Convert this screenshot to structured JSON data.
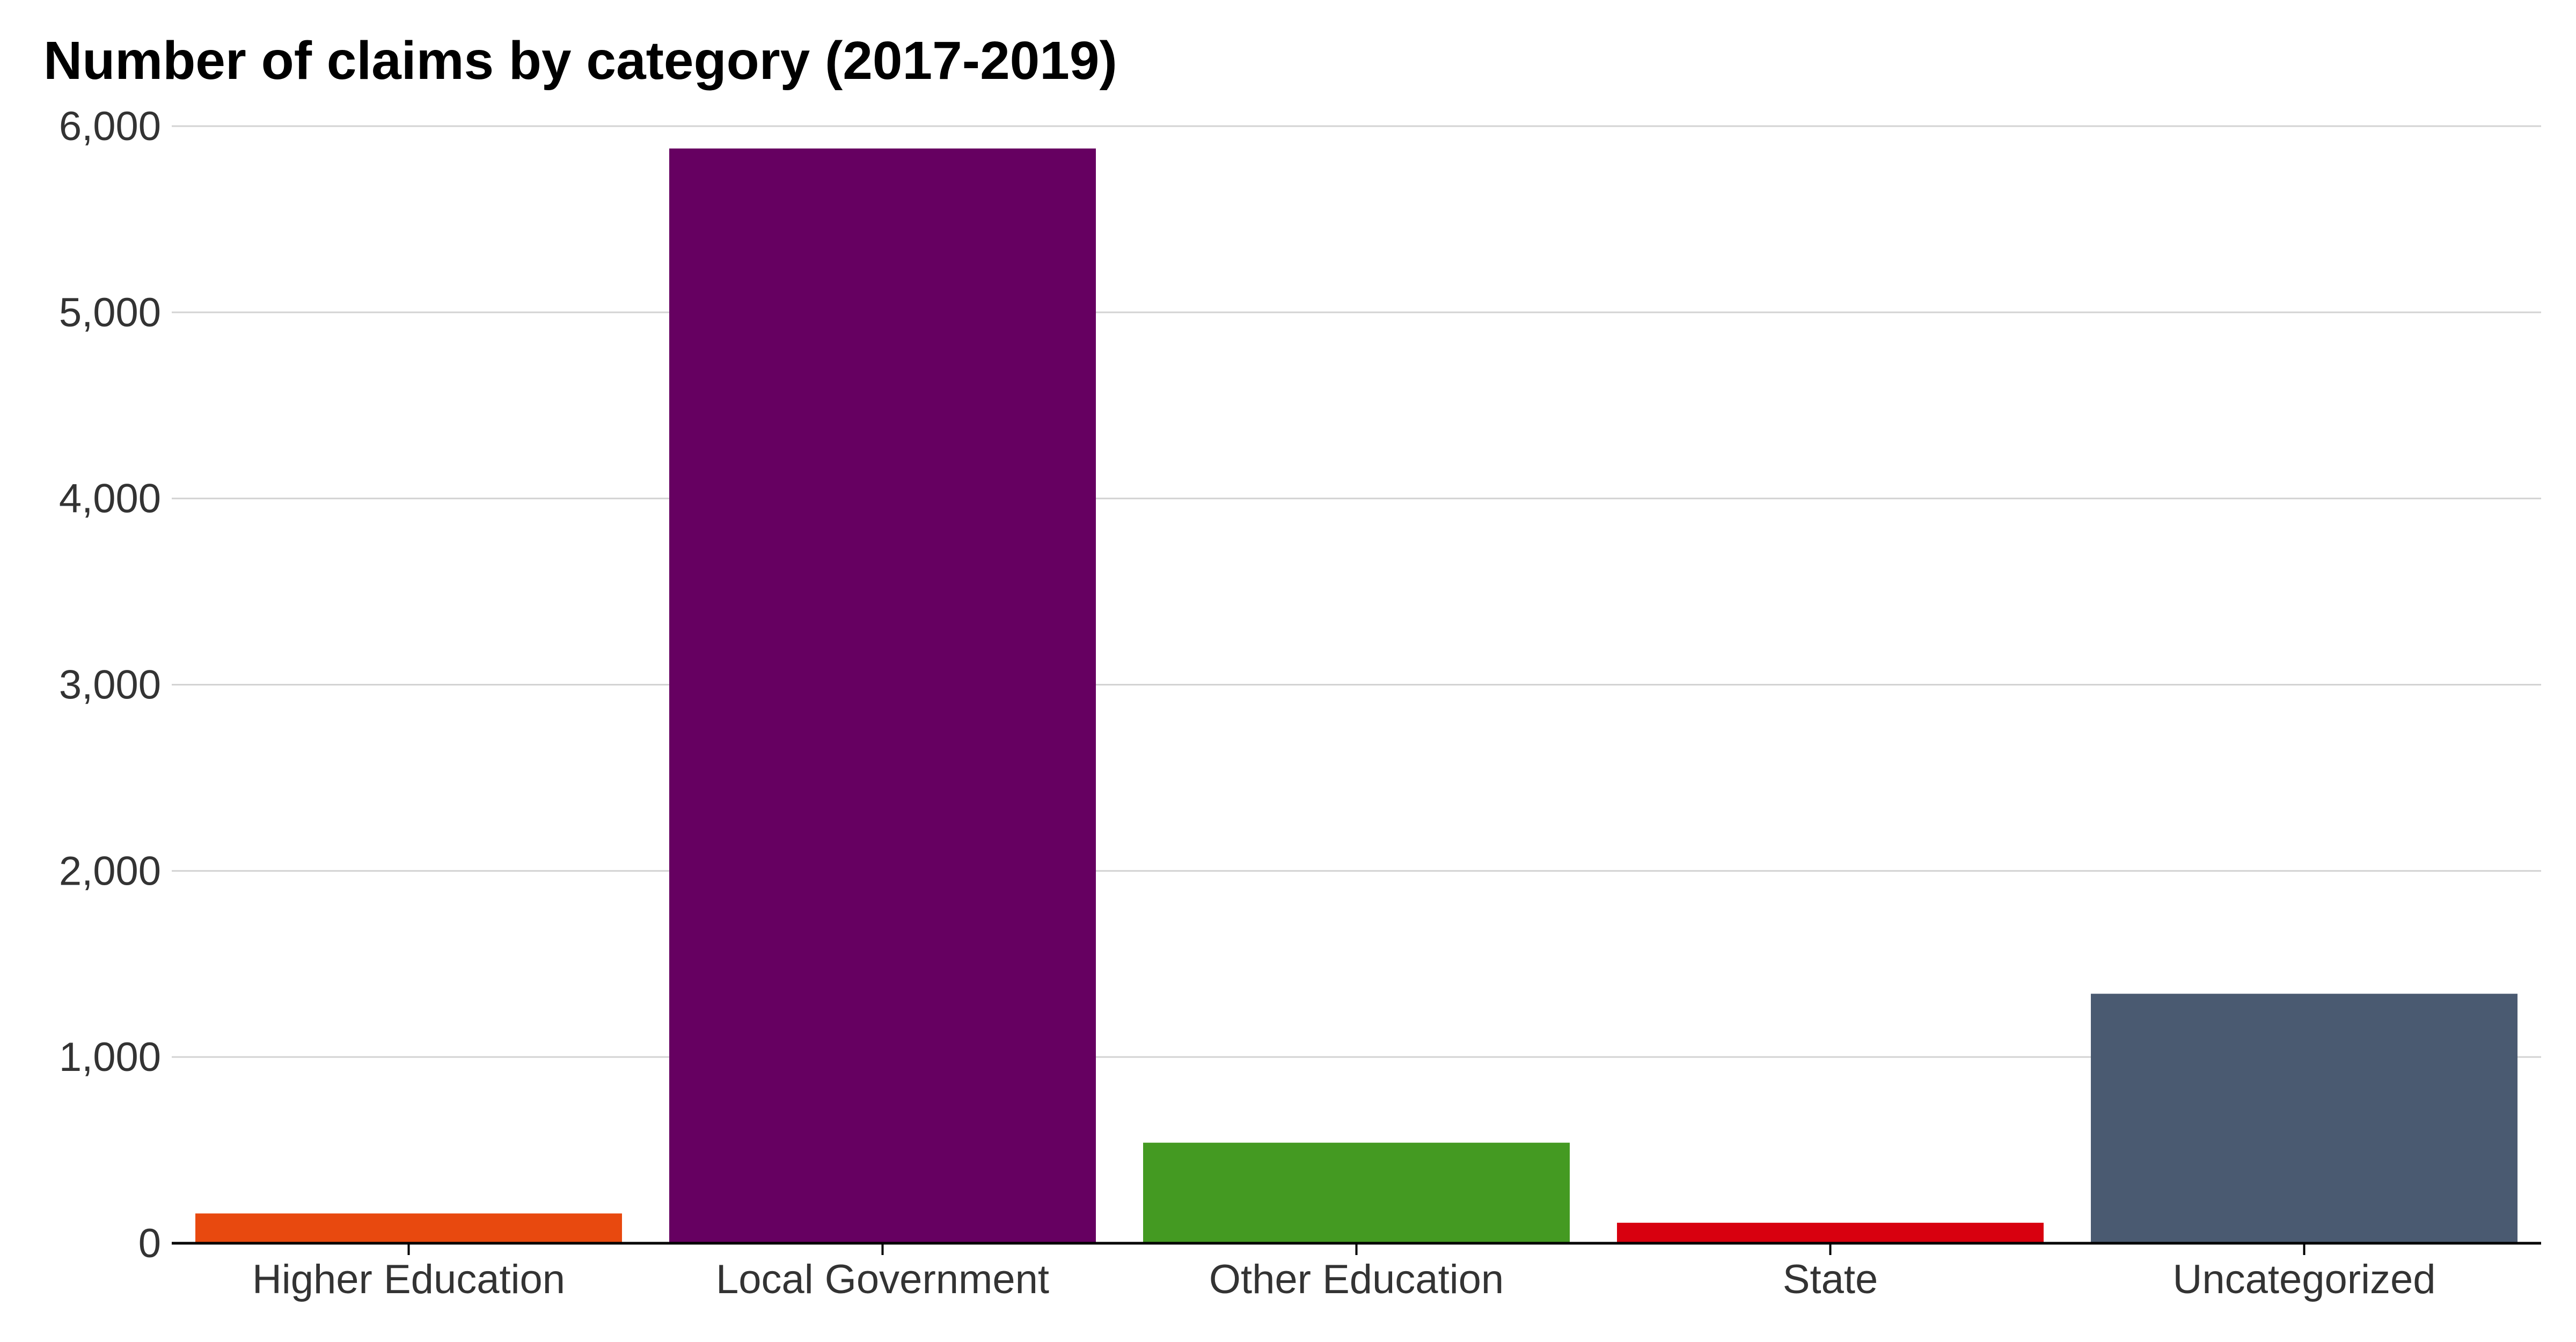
{
  "chart_data": {
    "type": "bar",
    "title": "Number of claims by category (2017-2019)",
    "xlabel": "",
    "ylabel": "",
    "categories": [
      "Higher Education",
      "Local Government",
      "Other Education",
      "State",
      "Uncategorized"
    ],
    "values": [
      160,
      5880,
      540,
      110,
      1340
    ],
    "colors": [
      "#e8490f",
      "#660061",
      "#449a22",
      "#d8000f",
      "#4a5a71"
    ],
    "ylim": [
      0,
      6000
    ],
    "yticks": [
      0,
      1000,
      2000,
      3000,
      4000,
      5000,
      6000
    ],
    "ytick_labels": [
      "0",
      "1,000",
      "2,000",
      "3,000",
      "4,000",
      "5,000",
      "6,000"
    ],
    "grid": true,
    "legend": "none"
  }
}
